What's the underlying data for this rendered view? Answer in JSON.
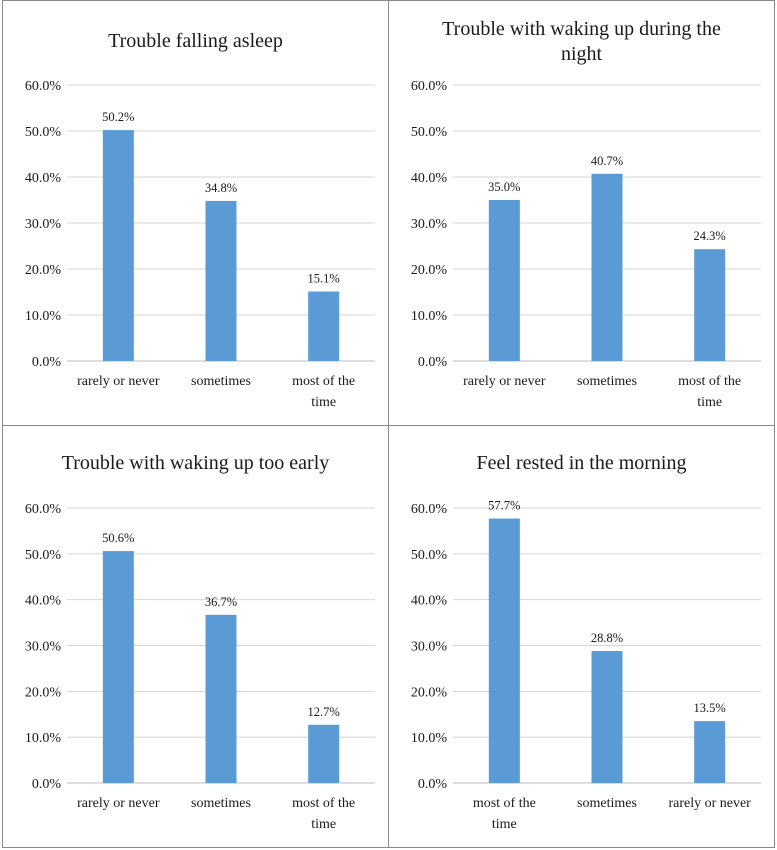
{
  "chart_data": [
    {
      "type": "bar",
      "title": "Trouble falling asleep",
      "categories": [
        "rarely or never",
        "sometimes",
        "most of the time"
      ],
      "values": [
        50.2,
        34.8,
        15.1
      ],
      "data_labels": [
        "50.2%",
        "34.8%",
        "15.1%"
      ],
      "ylim": [
        0,
        60
      ],
      "yticks": [
        "0.0%",
        "10.0%",
        "20.0%",
        "30.0%",
        "40.0%",
        "50.0%",
        "60.0%"
      ],
      "grid": true,
      "color": "#5b9bd5"
    },
    {
      "type": "bar",
      "title": "Trouble with waking up during the night",
      "categories": [
        "rarely or never",
        "sometimes",
        "most of the time"
      ],
      "values": [
        35.0,
        40.7,
        24.3
      ],
      "data_labels": [
        "35.0%",
        "40.7%",
        "24.3%"
      ],
      "ylim": [
        0,
        60
      ],
      "yticks": [
        "0.0%",
        "10.0%",
        "20.0%",
        "30.0%",
        "40.0%",
        "50.0%",
        "60.0%"
      ],
      "grid": true,
      "color": "#5b9bd5"
    },
    {
      "type": "bar",
      "title": "Trouble with waking up too early",
      "categories": [
        "rarely or never",
        "sometimes",
        "most of the time"
      ],
      "values": [
        50.6,
        36.7,
        12.7
      ],
      "data_labels": [
        "50.6%",
        "36.7%",
        "12.7%"
      ],
      "ylim": [
        0,
        60
      ],
      "yticks": [
        "0.0%",
        "10.0%",
        "20.0%",
        "30.0%",
        "40.0%",
        "50.0%",
        "60.0%"
      ],
      "grid": true,
      "color": "#5b9bd5"
    },
    {
      "type": "bar",
      "title": "Feel rested in the morning",
      "categories": [
        "most of the time",
        "sometimes",
        "rarely or never"
      ],
      "values": [
        57.7,
        28.8,
        13.5
      ],
      "data_labels": [
        "57.7%",
        "28.8%",
        "13.5%"
      ],
      "ylim": [
        0,
        60
      ],
      "yticks": [
        "0.0%",
        "10.0%",
        "20.0%",
        "30.0%",
        "40.0%",
        "50.0%",
        "60.0%"
      ],
      "grid": true,
      "color": "#5b9bd5"
    }
  ]
}
